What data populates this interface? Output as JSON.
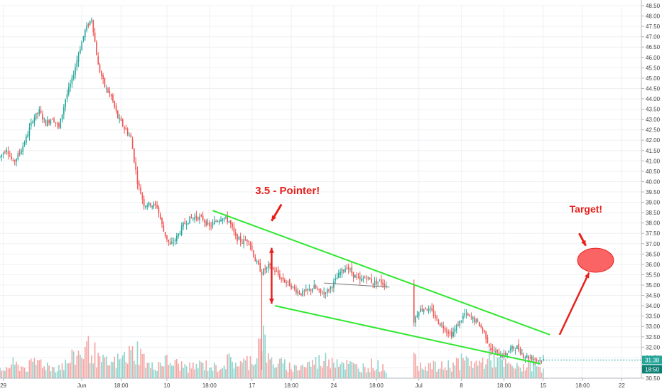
{
  "chart_data": {
    "type": "candlestick",
    "title": "",
    "xlabel": "",
    "ylabel": "",
    "ylim": [
      30.5,
      48.5
    ],
    "y_ticks": [
      48.5,
      48.0,
      47.5,
      47.0,
      46.5,
      46.0,
      45.5,
      45.0,
      44.5,
      44.0,
      43.5,
      43.0,
      42.5,
      42.0,
      41.5,
      41.0,
      40.5,
      40.0,
      39.5,
      39.0,
      38.5,
      38.0,
      37.5,
      37.0,
      36.5,
      36.0,
      35.5,
      35.0,
      34.5,
      34.0,
      33.5,
      33.0,
      32.5,
      32.0,
      31.5,
      31.0,
      30.5
    ],
    "y_tick_labels": [
      "48.50",
      "48.00",
      "47.50",
      "47.00",
      "46.50",
      "46.00",
      "45.50",
      "45.00",
      "44.50",
      "44.00",
      "43.50",
      "43.00",
      "42.50",
      "42.00",
      "41.50",
      "41.00",
      "40.50",
      "40.00",
      "39.50",
      "39.00",
      "38.50",
      "38.00",
      "37.50",
      "37.00",
      "36.50",
      "36.00",
      "35.50",
      "35.00",
      "34.50",
      "34.00",
      "33.50",
      "33.00",
      "32.50",
      "32.00",
      "31.50",
      "31.00",
      "30.50"
    ],
    "x_tick_labels": [
      "29",
      "Jun",
      "18:00",
      "10",
      "18:00",
      "17",
      "18:00",
      "24",
      "18:00",
      "Jul",
      "8",
      "18:00",
      "15",
      "18:00",
      "22"
    ],
    "x_tick_values": [
      1,
      25,
      37,
      51,
      64,
      77,
      89,
      102,
      115,
      128,
      141,
      154,
      166,
      178,
      190
    ],
    "x_range": [
      0,
      196
    ],
    "last_price_label": "31.38",
    "countdown_label": "18:50",
    "last_price": 31.38,
    "grid": true,
    "price_path": [
      [
        0,
        41.2
      ],
      [
        2,
        41.6
      ],
      [
        4,
        40.9
      ],
      [
        6,
        41.4
      ],
      [
        8,
        42.1
      ],
      [
        10,
        43.0
      ],
      [
        12,
        43.4
      ],
      [
        14,
        42.8
      ],
      [
        16,
        43.1
      ],
      [
        18,
        42.6
      ],
      [
        20,
        44.0
      ],
      [
        22,
        44.9
      ],
      [
        24,
        46.2
      ],
      [
        26,
        47.3
      ],
      [
        28,
        47.9
      ],
      [
        30,
        45.6
      ],
      [
        32,
        44.6
      ],
      [
        34,
        44.1
      ],
      [
        36,
        43.1
      ],
      [
        38,
        42.6
      ],
      [
        40,
        42.1
      ],
      [
        42,
        40.0
      ],
      [
        44,
        38.9
      ],
      [
        46,
        38.9
      ],
      [
        48,
        38.8
      ],
      [
        50,
        37.6
      ],
      [
        52,
        36.9
      ],
      [
        54,
        37.3
      ],
      [
        56,
        37.9
      ],
      [
        58,
        38.2
      ],
      [
        60,
        38.3
      ],
      [
        62,
        38.2
      ],
      [
        64,
        37.8
      ],
      [
        66,
        38.1
      ],
      [
        68,
        38.3
      ],
      [
        70,
        38.1
      ],
      [
        72,
        37.3
      ],
      [
        74,
        37.1
      ],
      [
        76,
        37.2
      ],
      [
        78,
        36.2
      ],
      [
        80,
        35.6
      ],
      [
        82,
        35.9
      ],
      [
        84,
        35.7
      ],
      [
        86,
        35.3
      ],
      [
        88,
        35.1
      ],
      [
        90,
        34.8
      ],
      [
        92,
        34.6
      ],
      [
        94,
        34.7
      ],
      [
        96,
        34.9
      ],
      [
        98,
        34.6
      ],
      [
        100,
        34.7
      ],
      [
        102,
        35.1
      ],
      [
        104,
        35.6
      ],
      [
        106,
        35.9
      ],
      [
        108,
        35.5
      ],
      [
        110,
        35.2
      ],
      [
        112,
        35.4
      ],
      [
        114,
        35.1
      ],
      [
        116,
        35.2
      ],
      [
        118,
        35.0
      ],
      [
        126,
        33.1
      ],
      [
        128,
        33.8
      ],
      [
        130,
        33.9
      ],
      [
        132,
        33.7
      ],
      [
        134,
        33.2
      ],
      [
        136,
        32.9
      ],
      [
        138,
        32.6
      ],
      [
        140,
        33.1
      ],
      [
        142,
        33.6
      ],
      [
        144,
        33.4
      ],
      [
        146,
        33.2
      ],
      [
        148,
        32.7
      ],
      [
        150,
        31.9
      ],
      [
        152,
        31.7
      ],
      [
        154,
        31.6
      ],
      [
        156,
        31.9
      ],
      [
        158,
        32.0
      ],
      [
        160,
        31.6
      ],
      [
        162,
        31.5
      ],
      [
        164,
        31.4
      ],
      [
        166,
        31.38
      ]
    ],
    "volume_path": [
      [
        0,
        2
      ],
      [
        4,
        4
      ],
      [
        8,
        3
      ],
      [
        12,
        5
      ],
      [
        16,
        3
      ],
      [
        20,
        4
      ],
      [
        24,
        7
      ],
      [
        28,
        9
      ],
      [
        30,
        5
      ],
      [
        34,
        4
      ],
      [
        38,
        6
      ],
      [
        42,
        8
      ],
      [
        46,
        3
      ],
      [
        50,
        5
      ],
      [
        54,
        4
      ],
      [
        58,
        3
      ],
      [
        62,
        4
      ],
      [
        66,
        3
      ],
      [
        70,
        5
      ],
      [
        74,
        4
      ],
      [
        78,
        6
      ],
      [
        80,
        14
      ],
      [
        82,
        5
      ],
      [
        86,
        4
      ],
      [
        90,
        3
      ],
      [
        94,
        4
      ],
      [
        98,
        5
      ],
      [
        102,
        6
      ],
      [
        106,
        4
      ],
      [
        110,
        3
      ],
      [
        114,
        4
      ],
      [
        118,
        3
      ],
      [
        126,
        5
      ],
      [
        130,
        4
      ],
      [
        134,
        3
      ],
      [
        138,
        4
      ],
      [
        142,
        5
      ],
      [
        146,
        4
      ],
      [
        150,
        6
      ],
      [
        154,
        4
      ],
      [
        158,
        3
      ],
      [
        162,
        4
      ],
      [
        166,
        3
      ]
    ],
    "trendlines": [
      {
        "from": [
          65,
          38.6
        ],
        "to": [
          168,
          32.6
        ],
        "color": "#2ee82e"
      },
      {
        "from": [
          84,
          34.0
        ],
        "to": [
          165,
          31.2
        ],
        "color": "#2ee82e"
      },
      {
        "from": [
          99,
          35.1
        ],
        "to": [
          119,
          34.9
        ],
        "color": "#7a7a7a"
      }
    ],
    "arrows": [
      {
        "from": [
          83,
          36.8
        ],
        "to": [
          83,
          34.1
        ],
        "color": "#e8201c",
        "double": true
      },
      {
        "from": [
          171,
          32.6
        ],
        "to": [
          180,
          35.6
        ],
        "color": "#e8201c",
        "double": false
      }
    ],
    "target_ellipse": {
      "center": [
        182,
        36.2
      ],
      "rx_bars": 5.5,
      "ry_price": 0.58,
      "color": "#fa6464"
    },
    "annotations": [
      {
        "text": "3.5 - Pointer!",
        "x": 78,
        "y": 39.4,
        "size": 15
      },
      {
        "text": "Target!",
        "x": 174,
        "y": 38.5,
        "size": 14
      }
    ],
    "small_arrows": [
      {
        "from": [
          86,
          38.9
        ],
        "to": [
          83,
          38.1
        ]
      },
      {
        "from": [
          177,
          37.5
        ],
        "to": [
          179,
          36.9
        ]
      }
    ],
    "colors": {
      "up": "#26a69a",
      "down": "#ef5350",
      "grid": "#eef0f3",
      "axis": "#b2b5be",
      "price_tag": "#26a69a",
      "countdown_tag": "#0e7f73"
    }
  }
}
